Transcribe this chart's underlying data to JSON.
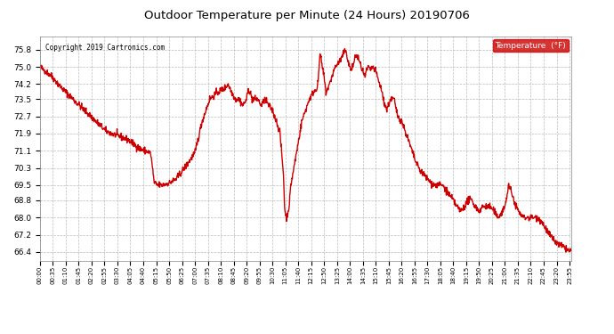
{
  "title": "Outdoor Temperature per Minute (24 Hours) 20190706",
  "copyright_text": "Copyright 2019 Cartronics.com",
  "legend_label": "Temperature  (°F)",
  "line_color": "#cc0000",
  "legend_bg_color": "#cc0000",
  "legend_text_color": "#ffffff",
  "background_color": "#ffffff",
  "plot_bg_color": "#ffffff",
  "grid_color": "#aaaaaa",
  "title_color": "#000000",
  "ylim_min": 66.0,
  "ylim_max": 76.4,
  "yticks": [
    66.4,
    67.2,
    68.0,
    68.8,
    69.5,
    70.3,
    71.1,
    71.9,
    72.7,
    73.5,
    74.2,
    75.0,
    75.8
  ],
  "x_tick_interval": 35,
  "line_width": 1.0
}
